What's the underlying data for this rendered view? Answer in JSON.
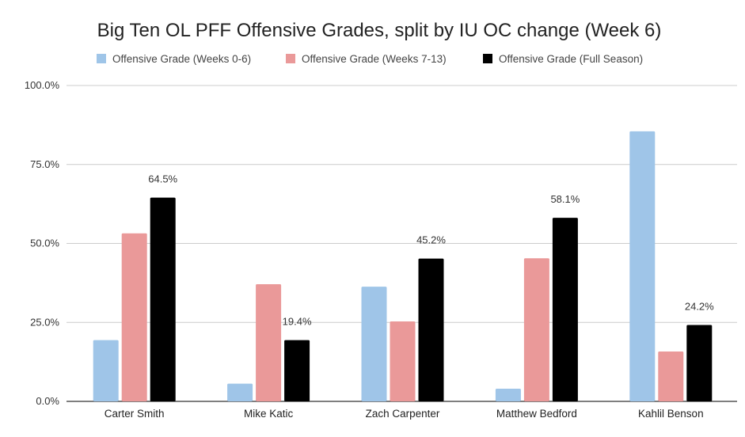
{
  "chart_data": {
    "type": "bar",
    "title": "Big Ten OL PFF Offensive Grades, split by IU OC change (Week 6)",
    "categories": [
      "Carter Smith",
      "Mike Katic",
      "Zach Carpenter",
      "Matthew Bedford",
      "Kahlil Benson"
    ],
    "series": [
      {
        "name": "Offensive Grade (Weeks 0-6)",
        "color": "#9fc5e8",
        "values": [
          19.4,
          5.6,
          36.3,
          4.0,
          85.5
        ]
      },
      {
        "name": "Offensive Grade (Weeks 7-13)",
        "color": "#ea9999",
        "values": [
          53.2,
          37.1,
          25.3,
          45.3,
          15.8
        ]
      },
      {
        "name": "Offensive Grade (Full Season)",
        "color": "#000000",
        "values": [
          64.5,
          19.4,
          45.2,
          58.1,
          24.2
        ],
        "data_labels": [
          "64.5%",
          "19.4%",
          "45.2%",
          "58.1%",
          "24.2%"
        ]
      }
    ],
    "yticks": [
      "0.0%",
      "25.0%",
      "50.0%",
      "75.0%",
      "100.0%"
    ],
    "ylim": [
      0,
      100
    ],
    "xlabel": "",
    "ylabel": "",
    "grid": true,
    "legend_position": "top"
  }
}
